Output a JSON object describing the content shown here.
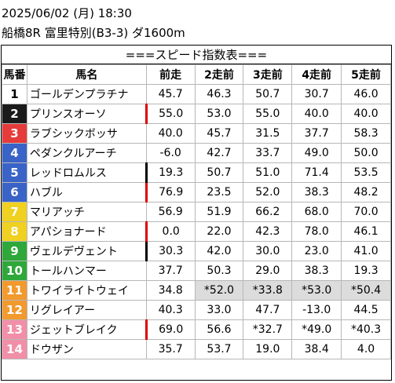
{
  "header": {
    "date_time": "2025/06/02 (月) 18:30",
    "race": "船橋8R 富里特別(B3-3) ダ1600m"
  },
  "banner": "===スピード指数表===",
  "columns": [
    "馬番",
    "馬名",
    "前走",
    "2走前",
    "3走前",
    "4走前",
    "5走前"
  ],
  "colors": {
    "gate1": "#ffffff",
    "gate2": "#1a1a1a",
    "gate3": "#e63b3b",
    "gate4": "#3a63c8",
    "gate5": "#f0d020",
    "gate6": "#2ea83a",
    "gate7": "#f29a2e",
    "gate8": "#f28fa8",
    "marker_red": "#e00000",
    "marker_black": "#000000",
    "shade": "#dcdcdc"
  },
  "rows": [
    {
      "num": "1",
      "name": "ゴールデンプラチナ",
      "gate": "gate1",
      "marker": "",
      "v": [
        "45.7",
        "46.3",
        "50.7",
        "30.7",
        "46.0"
      ],
      "shade": [
        false,
        false,
        false,
        false,
        false
      ]
    },
    {
      "num": "2",
      "name": "プリンスオーソ",
      "gate": "gate2",
      "marker": "red",
      "v": [
        "55.0",
        "53.0",
        "55.0",
        "40.0",
        "40.0"
      ],
      "shade": [
        false,
        false,
        false,
        false,
        false
      ]
    },
    {
      "num": "3",
      "name": "ラブシックボッサ",
      "gate": "gate3",
      "marker": "",
      "v": [
        "40.0",
        "45.7",
        "31.5",
        "37.7",
        "58.3"
      ],
      "shade": [
        false,
        false,
        false,
        false,
        false
      ]
    },
    {
      "num": "4",
      "name": "ペダンクルアーチ",
      "gate": "gate4",
      "marker": "",
      "v": [
        "-6.0",
        "42.7",
        "33.7",
        "49.0",
        "50.0"
      ],
      "shade": [
        false,
        false,
        false,
        false,
        false
      ]
    },
    {
      "num": "5",
      "name": "レッドロムルス",
      "gate": "gate4",
      "marker": "black",
      "v": [
        "19.3",
        "50.7",
        "51.0",
        "71.4",
        "53.5"
      ],
      "shade": [
        false,
        false,
        false,
        false,
        false
      ]
    },
    {
      "num": "6",
      "name": "ハブル",
      "gate": "gate4",
      "marker": "red",
      "v": [
        "76.9",
        "23.5",
        "52.0",
        "38.3",
        "48.2"
      ],
      "shade": [
        false,
        false,
        false,
        false,
        false
      ]
    },
    {
      "num": "7",
      "name": "マリアッチ",
      "gate": "gate5",
      "marker": "",
      "v": [
        "56.9",
        "51.9",
        "66.2",
        "68.0",
        "70.0"
      ],
      "shade": [
        false,
        false,
        false,
        false,
        false
      ]
    },
    {
      "num": "8",
      "name": "アパショナード",
      "gate": "gate5",
      "marker": "red",
      "v": [
        "0.0",
        "22.0",
        "42.3",
        "78.0",
        "46.1"
      ],
      "shade": [
        false,
        false,
        false,
        false,
        false
      ]
    },
    {
      "num": "9",
      "name": "ヴェルデヴェント",
      "gate": "gate6",
      "marker": "black",
      "v": [
        "30.3",
        "42.0",
        "30.0",
        "23.0",
        "41.0"
      ],
      "shade": [
        false,
        false,
        false,
        false,
        false
      ]
    },
    {
      "num": "10",
      "name": "トールハンマー",
      "gate": "gate6",
      "marker": "",
      "v": [
        "37.7",
        "50.3",
        "29.0",
        "38.3",
        "19.3"
      ],
      "shade": [
        false,
        false,
        false,
        false,
        false
      ]
    },
    {
      "num": "11",
      "name": "トワイライトウェイ",
      "gate": "gate7",
      "marker": "",
      "v": [
        "34.8",
        "*52.0",
        "*33.8",
        "*53.0",
        "*50.4"
      ],
      "shade": [
        false,
        true,
        true,
        true,
        true
      ]
    },
    {
      "num": "12",
      "name": "リグレイアー",
      "gate": "gate7",
      "marker": "",
      "v": [
        "40.3",
        "33.0",
        "47.7",
        "-13.0",
        "44.5"
      ],
      "shade": [
        false,
        false,
        false,
        false,
        false
      ]
    },
    {
      "num": "13",
      "name": "ジェットブレイク",
      "gate": "gate8",
      "marker": "red",
      "v": [
        "69.0",
        "56.6",
        "*32.7",
        "*49.0",
        "*40.3"
      ],
      "shade": [
        false,
        false,
        false,
        false,
        false
      ]
    },
    {
      "num": "14",
      "name": "ドウザン",
      "gate": "gate8",
      "marker": "",
      "v": [
        "35.7",
        "53.7",
        "19.0",
        "38.4",
        "4.0"
      ],
      "shade": [
        false,
        false,
        false,
        false,
        false
      ]
    }
  ]
}
